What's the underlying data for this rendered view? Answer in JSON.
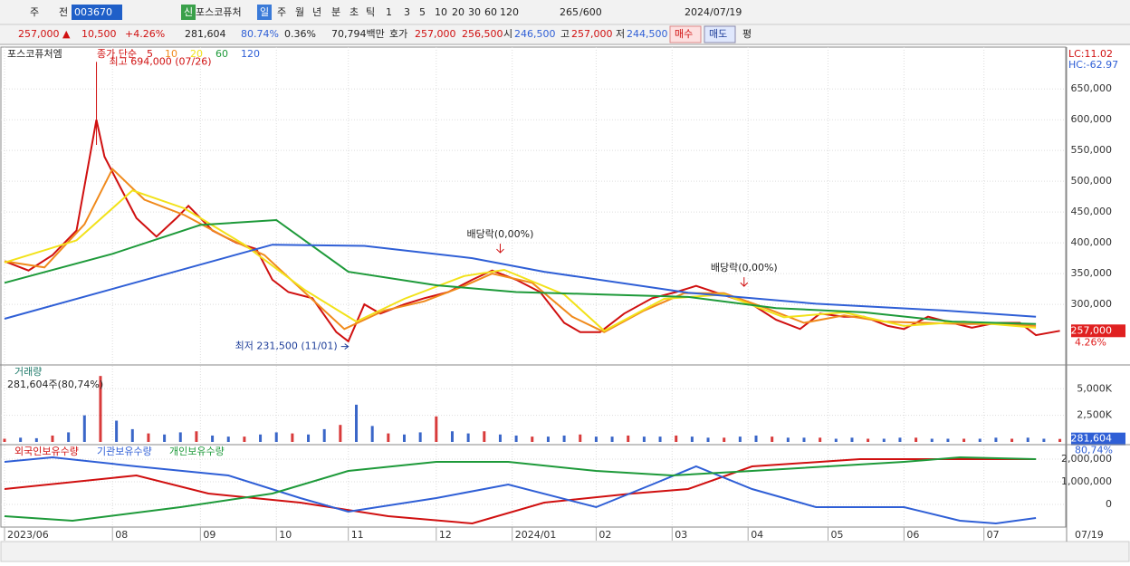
{
  "toolbar": [
    "주",
    "전",
    "003670",
    "신",
    "포스코퓨처",
    "일",
    "주",
    "월",
    "년",
    "분",
    "초",
    "틱",
    "1",
    "3",
    "5",
    "10",
    "20",
    "30",
    "60",
    "120",
    "265",
    "/600",
    "2024/07/19"
  ],
  "quote_bar": [
    "257,000 ▲",
    "10,500",
    "+4.26%",
    "281,604",
    "80.74%",
    "0.36%",
    "70,794백만",
    "호가",
    "257,000",
    "256,500",
    "시",
    "246,500",
    "고",
    "257,000",
    "저",
    "244,500",
    "매수",
    "매도",
    "평"
  ],
  "chart_data": [
    {
      "type": "line",
      "title": "포스코퓨처엠",
      "legend_title": "종가 단순",
      "lc": "LC:11.02",
      "hc": "HC:-62.97",
      "xlim": [
        0,
        265
      ],
      "ylim": [
        203000,
        718000
      ],
      "yticks": [
        {
          "value": 300000,
          "label": "300,000"
        },
        {
          "value": 350000,
          "label": "350,000"
        },
        {
          "value": 400000,
          "label": "400,000"
        },
        {
          "value": 450000,
          "label": "450,000"
        },
        {
          "value": 500000,
          "label": "500,000"
        },
        {
          "value": 550000,
          "label": "550,000"
        },
        {
          "value": 600000,
          "label": "600,000"
        },
        {
          "value": 650000,
          "label": "650,000"
        }
      ],
      "grid": true,
      "last": {
        "value": 257000,
        "label": "257,000"
      },
      "last_change": "4.26%",
      "annotations": [
        {
          "text": "최고 694,000 (07/26)",
          "x": 23,
          "y": 694000
        },
        {
          "text": "최저 231,500 (11/01)",
          "x": 86,
          "y": 231500
        },
        {
          "text": "배당락(0,00%)",
          "x": 124,
          "y": 378000
        },
        {
          "text": "배당락(0,00%)",
          "x": 185,
          "y": 323500
        }
      ],
      "series": [
        {
          "name": "5",
          "color": "#d01010",
          "x": [
            0,
            6,
            12,
            18,
            23,
            25,
            29,
            33,
            38,
            43,
            46,
            52,
            58,
            63,
            67,
            71,
            77,
            83,
            86,
            90,
            94,
            100,
            105,
            111,
            117,
            122,
            128,
            134,
            140,
            144,
            149,
            155,
            162,
            168,
            173,
            180,
            187,
            193,
            199,
            204,
            210,
            215,
            221,
            225,
            231,
            237,
            242,
            248,
            254,
            258,
            264
          ],
          "values": [
            370000,
            355000,
            380000,
            420000,
            600000,
            540000,
            490000,
            440000,
            410000,
            440000,
            460000,
            420000,
            400000,
            390000,
            340000,
            320000,
            310000,
            255000,
            240000,
            300000,
            285000,
            300000,
            310000,
            320000,
            340000,
            355000,
            340000,
            320000,
            270000,
            255000,
            255000,
            285000,
            310000,
            320000,
            330000,
            315000,
            300000,
            275000,
            260000,
            285000,
            280000,
            280000,
            265000,
            260000,
            280000,
            270000,
            262000,
            270000,
            270000,
            250000,
            257000
          ]
        },
        {
          "name": "10",
          "color": "#f08a1c",
          "x": [
            0,
            10,
            20,
            27,
            35,
            45,
            55,
            65,
            75,
            85,
            95,
            105,
            115,
            122,
            132,
            142,
            150,
            160,
            170,
            180,
            190,
            200,
            210,
            220,
            230,
            240,
            250,
            258
          ],
          "values": [
            370000,
            360000,
            430000,
            520000,
            470000,
            445000,
            410000,
            380000,
            320000,
            260000,
            290000,
            305000,
            330000,
            350000,
            335000,
            280000,
            255000,
            290000,
            318000,
            318000,
            295000,
            270000,
            282000,
            272000,
            270000,
            268000,
            268000,
            265000
          ]
        },
        {
          "name": "20",
          "color": "#f2e21a",
          "x": [
            0,
            18,
            32,
            45,
            60,
            75,
            88,
            100,
            115,
            125,
            140,
            150,
            165,
            180,
            195,
            210,
            225,
            240,
            258
          ],
          "values": [
            368000,
            404000,
            485000,
            456000,
            397000,
            324000,
            272000,
            309000,
            346000,
            356000,
            316000,
            257000,
            309000,
            316000,
            279000,
            287000,
            265000,
            272000,
            262000
          ]
        },
        {
          "name": "60",
          "color": "#1e9a3a",
          "x": [
            0,
            27,
            49,
            68,
            86,
            108,
            128,
            150,
            171,
            193,
            215,
            237,
            258
          ],
          "values": [
            335000,
            382000,
            429000,
            437000,
            353000,
            331000,
            320000,
            316000,
            312000,
            294000,
            287000,
            272000,
            268000
          ]
        },
        {
          "name": "120",
          "color": "#2f5fd6",
          "x": [
            0,
            67,
            90,
            117,
            135,
            171,
            203,
            235,
            258
          ],
          "values": [
            276500,
            397000,
            395000,
            375000,
            353000,
            319000,
            301000,
            290000,
            280000
          ]
        }
      ]
    },
    {
      "type": "bar",
      "title": "거래량",
      "subtitle": "281,604주(80,74%)",
      "xlim": [
        0,
        265
      ],
      "ylim": [
        0,
        7150000
      ],
      "yticks": [
        {
          "value": 2500000,
          "label": "2,500K"
        },
        {
          "value": 5000000,
          "label": "5,000K"
        }
      ],
      "grid": true,
      "last": {
        "value": 281604,
        "label": "281,604"
      },
      "last_change": "80,74%",
      "series": [
        {
          "name": "거래량",
          "color": "#3a66c8",
          "x": [
            0,
            4,
            8,
            12,
            16,
            20,
            24,
            28,
            32,
            36,
            40,
            44,
            48,
            52,
            56,
            60,
            64,
            68,
            72,
            76,
            80,
            84,
            88,
            92,
            96,
            100,
            104,
            108,
            112,
            116,
            120,
            124,
            128,
            132,
            136,
            140,
            144,
            148,
            152,
            156,
            160,
            164,
            168,
            172,
            176,
            180,
            184,
            188,
            192,
            196,
            200,
            204,
            208,
            212,
            216,
            220,
            224,
            228,
            232,
            236,
            240,
            244,
            248,
            252,
            256,
            260,
            264
          ],
          "values": [
            300000,
            400000,
            350000,
            600000,
            900000,
            2500000,
            6200000,
            2000000,
            1200000,
            800000,
            700000,
            900000,
            1000000,
            600000,
            500000,
            500000,
            700000,
            900000,
            800000,
            700000,
            1200000,
            1600000,
            3500000,
            1500000,
            800000,
            700000,
            900000,
            2400000,
            1000000,
            800000,
            1000000,
            700000,
            600000,
            500000,
            500000,
            600000,
            700000,
            500000,
            500000,
            600000,
            500000,
            500000,
            600000,
            500000,
            400000,
            400000,
            500000,
            600000,
            500000,
            400000,
            400000,
            400000,
            300000,
            400000,
            300000,
            300000,
            400000,
            400000,
            300000,
            300000,
            300000,
            300000,
            400000,
            300000,
            400000,
            300000,
            281604
          ]
        }
      ]
    },
    {
      "type": "line",
      "xlim": [
        0,
        265
      ],
      "ylim": [
        -1000000,
        2600000
      ],
      "yticks": [
        {
          "value": 2000000,
          "label": "2,000,000"
        },
        {
          "value": 1000000,
          "label": "1,000,000"
        },
        0
      ],
      "grid": true,
      "xticks": [
        {
          "value": 0,
          "label": "2023/06"
        },
        {
          "value": 27,
          "label": "08"
        },
        {
          "value": 49,
          "label": "09"
        },
        {
          "value": 68,
          "label": "10"
        },
        {
          "value": 86,
          "label": "11"
        },
        {
          "value": 108,
          "label": "12"
        },
        {
          "value": 127,
          "label": "2024/01"
        },
        {
          "value": 148,
          "label": "02"
        },
        {
          "value": 167,
          "label": "03"
        },
        {
          "value": 186,
          "label": "04"
        },
        {
          "value": 206,
          "label": "05"
        },
        {
          "value": 225,
          "label": "06"
        },
        {
          "value": 245,
          "label": "07"
        }
      ],
      "end_label": "07/19",
      "series": [
        {
          "name": "외국인보유수량",
          "color": "#d01010",
          "x": [
            0,
            33,
            51,
            74,
            96,
            117,
            135,
            157,
            171,
            187,
            214,
            237,
            258
          ],
          "values": [
            680000,
            1280000,
            480000,
            80000,
            -520000,
            -840000,
            80000,
            480000,
            680000,
            1680000,
            2000000,
            2000000,
            2000000
          ]
        },
        {
          "name": "기관보유수량",
          "color": "#2f5fd6",
          "x": [
            0,
            12,
            33,
            56,
            74,
            86,
            108,
            126,
            148,
            162,
            173,
            187,
            203,
            225,
            239,
            248,
            258
          ],
          "values": [
            1880000,
            2080000,
            1680000,
            1280000,
            280000,
            -320000,
            280000,
            880000,
            -120000,
            880000,
            1680000,
            680000,
            -120000,
            -120000,
            -720000,
            -840000,
            -600000
          ]
        },
        {
          "name": "개인보유수량",
          "color": "#1e9a3a",
          "x": [
            0,
            17,
            44,
            67,
            86,
            108,
            126,
            148,
            167,
            187,
            225,
            239,
            258
          ],
          "values": [
            -520000,
            -720000,
            -120000,
            480000,
            1480000,
            1880000,
            1880000,
            1480000,
            1280000,
            1480000,
            1880000,
            2080000,
            2000000
          ]
        }
      ]
    }
  ]
}
